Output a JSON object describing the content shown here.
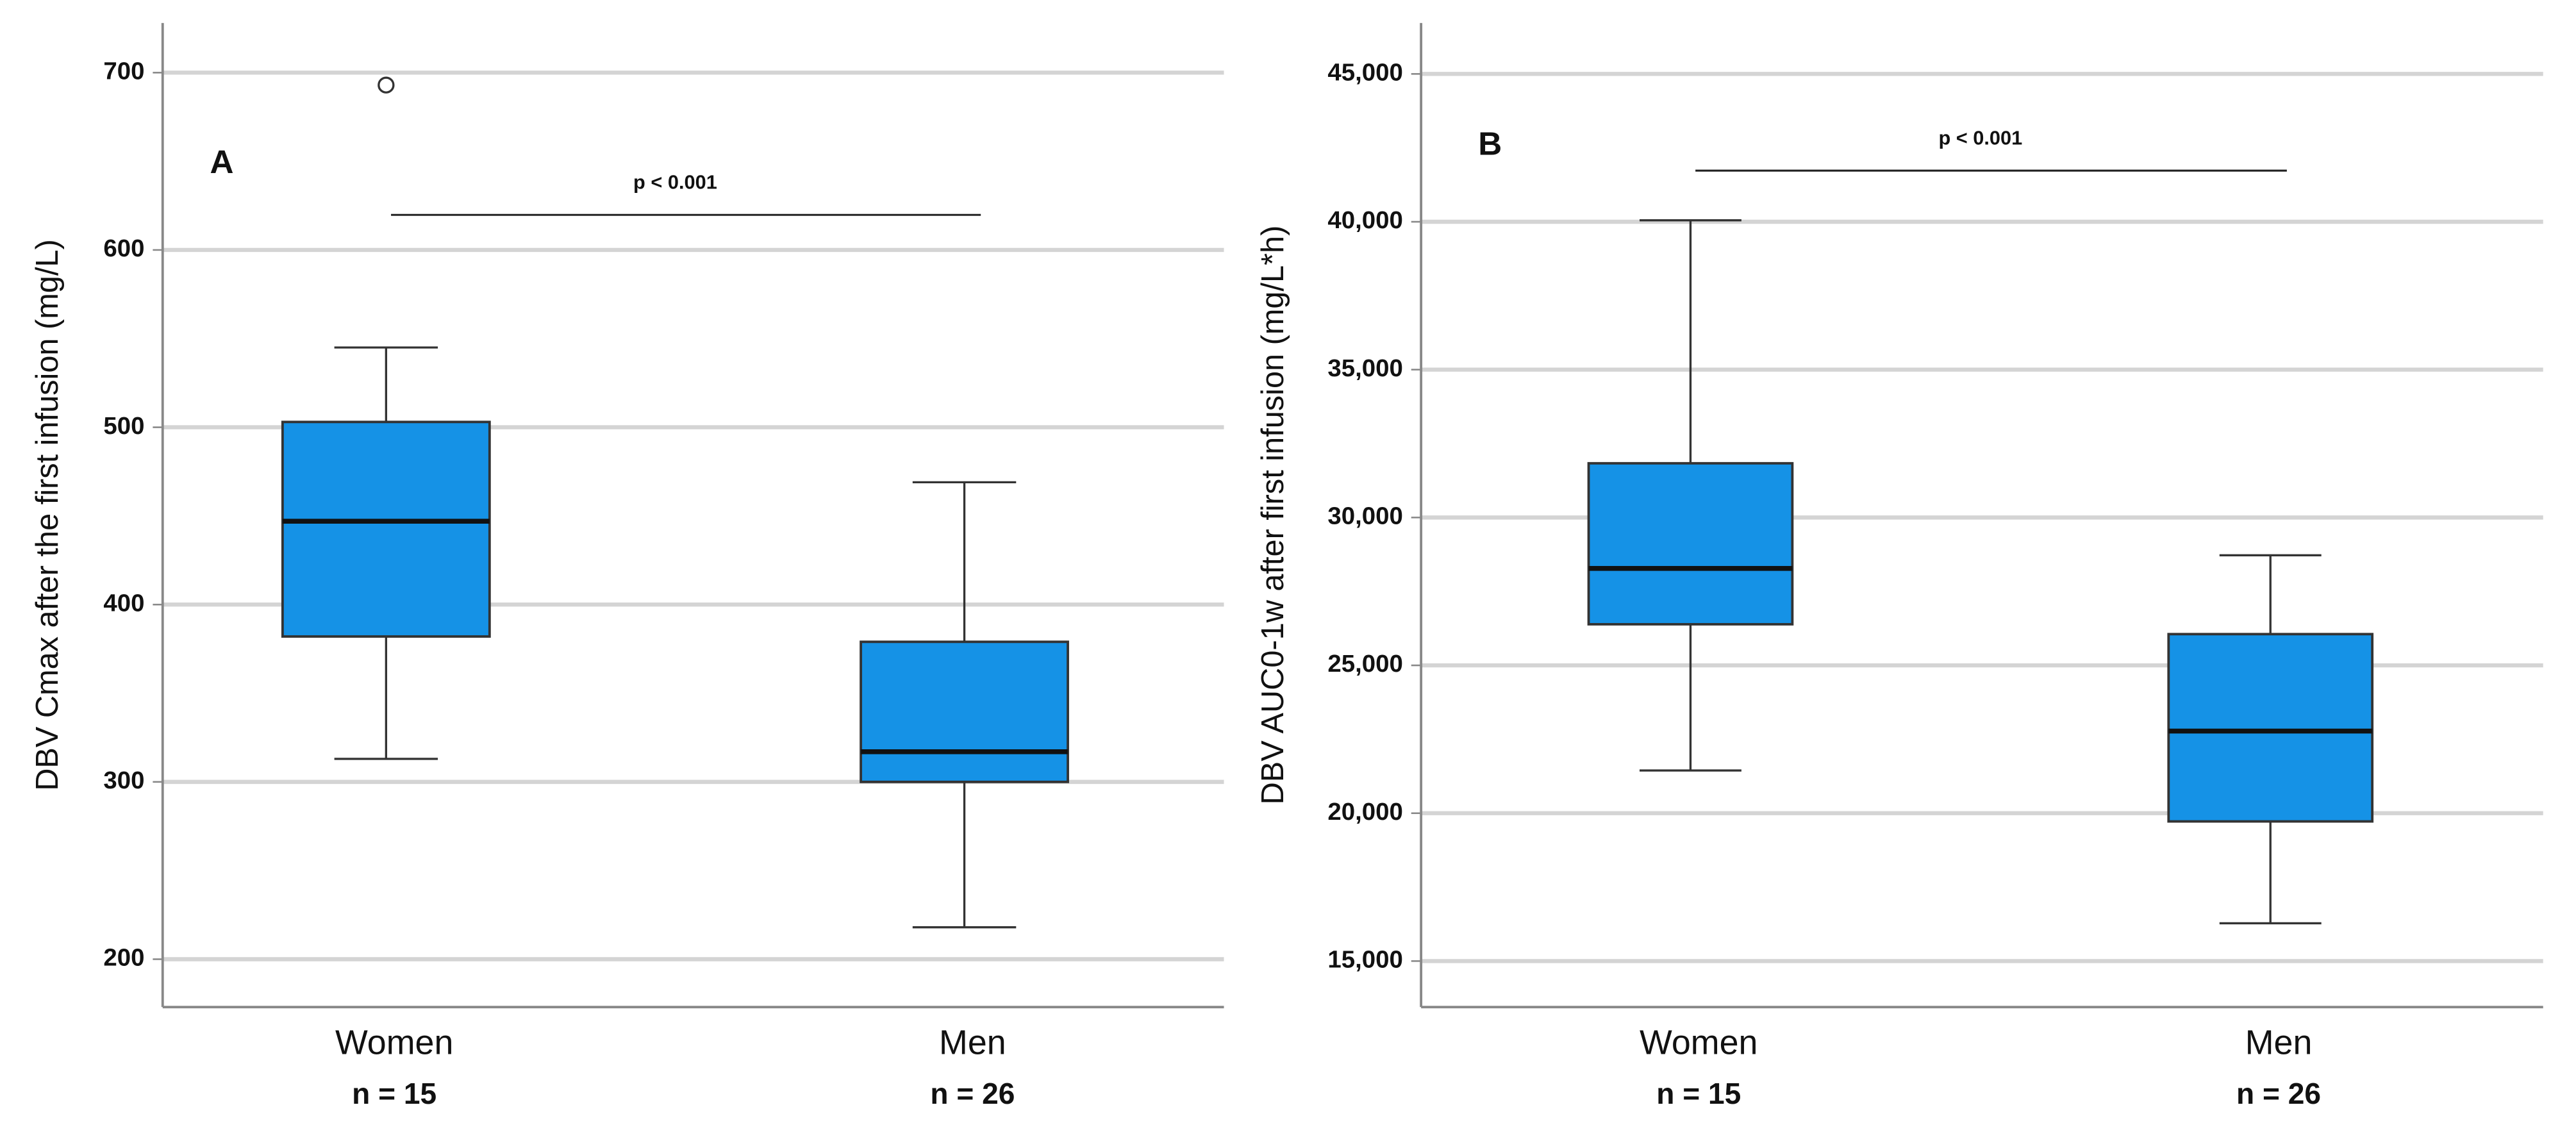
{
  "chart_data": [
    {
      "type": "box",
      "panel_label": "A",
      "ylabel": "DBV Cmax after the first infusion (mg/L)",
      "categories": [
        "Women",
        "Men"
      ],
      "n_labels": [
        "n = 15",
        "n = 26"
      ],
      "color": "#1592e6",
      "boxes": [
        {
          "min": 313,
          "q1": 382,
          "median": 447,
          "q3": 503,
          "max": 545,
          "outliers": [
            693
          ]
        },
        {
          "min": 218,
          "q1": 300,
          "median": 317,
          "q3": 379,
          "max": 469
        }
      ],
      "ylim": [
        173,
        728
      ],
      "yticks": [
        200,
        300,
        400,
        500,
        600,
        700
      ],
      "grid": true,
      "annotation": "p < 0.001"
    },
    {
      "type": "box",
      "panel_label": "B",
      "ylabel": "DBV AUC0-1w after first infusion (mg/L*h)",
      "categories": [
        "Women",
        "Men"
      ],
      "n_labels": [
        "n = 15",
        "n = 26"
      ],
      "color": "#1592e6",
      "boxes": [
        {
          "min": 21444,
          "q1": 26389,
          "median": 28278,
          "q3": 31833,
          "max": 40050
        },
        {
          "min": 16278,
          "q1": 19722,
          "median": 22778,
          "q3": 26056,
          "max": 28722
        }
      ],
      "ylim": [
        13444,
        46722
      ],
      "yticks": [
        {
          "value": 15000,
          "label": "15,000"
        },
        {
          "value": 20000,
          "label": "20,000"
        },
        {
          "value": 25000,
          "label": "25,000"
        },
        {
          "value": 30000,
          "label": "30,000"
        },
        {
          "value": 35000,
          "label": "35,000"
        },
        {
          "value": 40000,
          "label": "40,000"
        },
        {
          "value": 45000,
          "label": "45,000"
        }
      ],
      "grid": true,
      "annotation": "p < 0.001"
    }
  ]
}
